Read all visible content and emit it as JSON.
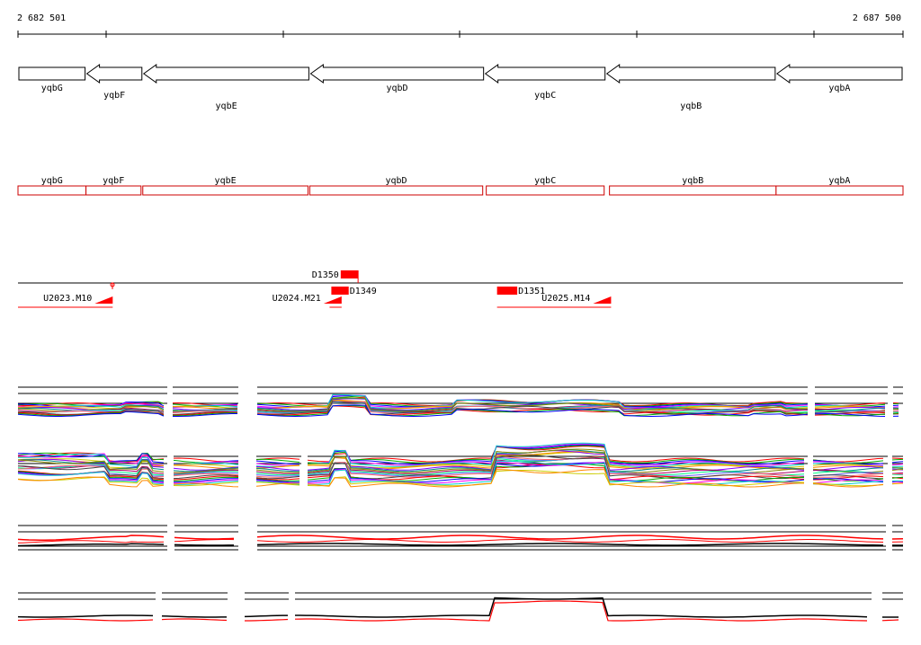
{
  "coordinates": {
    "start_label": "2 682 501",
    "end_label": "2 687 500",
    "start": 2682501,
    "end": 2687500
  },
  "colors": {
    "gene_stroke": "#000000",
    "cds_stroke": "#cc0000",
    "feature_fill": "#ff0000",
    "axis": "#000000",
    "track_red": "#ff0000"
  },
  "genes": [
    {
      "name": "yqbG",
      "start": 2682501,
      "end": 2682885,
      "strand": "+",
      "label_row": 1
    },
    {
      "name": "yqbF",
      "start": 2682885,
      "end": 2683206,
      "strand": "-",
      "label_row": 2
    },
    {
      "name": "yqbE",
      "start": 2683206,
      "end": 2684149,
      "strand": "-",
      "label_row": 3
    },
    {
      "name": "yqbD",
      "start": 2684149,
      "end": 2685136,
      "strand": "-",
      "label_row": 1
    },
    {
      "name": "yqbC",
      "start": 2685136,
      "end": 2685822,
      "strand": "-",
      "label_row": 2
    },
    {
      "name": "yqbB",
      "start": 2685822,
      "end": 2686783,
      "strand": "-",
      "label_row": 3
    },
    {
      "name": "yqbA",
      "start": 2686783,
      "end": 2687500,
      "strand": "-",
      "label_row": 1
    }
  ],
  "cds": [
    {
      "name": "yqbG",
      "start": 2682501,
      "end": 2682885
    },
    {
      "name": "yqbF",
      "start": 2682885,
      "end": 2683196
    },
    {
      "name": "yqbE",
      "start": 2683206,
      "end": 2684139
    },
    {
      "name": "yqbD",
      "start": 2684149,
      "end": 2685126
    },
    {
      "name": "yqbC",
      "start": 2685146,
      "end": 2685812
    },
    {
      "name": "yqbB",
      "start": 2685842,
      "end": 2686783
    },
    {
      "name": "yqbA",
      "start": 2686783,
      "end": 2687500
    }
  ],
  "features": {
    "boxes": [
      {
        "label": "D1350",
        "start": 2684324,
        "end": 2684422,
        "label_side": "left",
        "level": "upper"
      },
      {
        "label": "D1349",
        "start": 2684271,
        "end": 2684369,
        "label_side": "right",
        "level": "lower"
      },
      {
        "label": "D1351",
        "start": 2685207,
        "end": 2685321,
        "label_side": "right",
        "level": "lower"
      }
    ],
    "segments": [
      {
        "label": "U2023.M10",
        "start": 2682501,
        "end": 2683036
      },
      {
        "label": "U2024.M21",
        "start": 2684261,
        "end": 2684329
      },
      {
        "label": "U2025.M14",
        "start": 2685207,
        "end": 2685851
      }
    ]
  }
}
